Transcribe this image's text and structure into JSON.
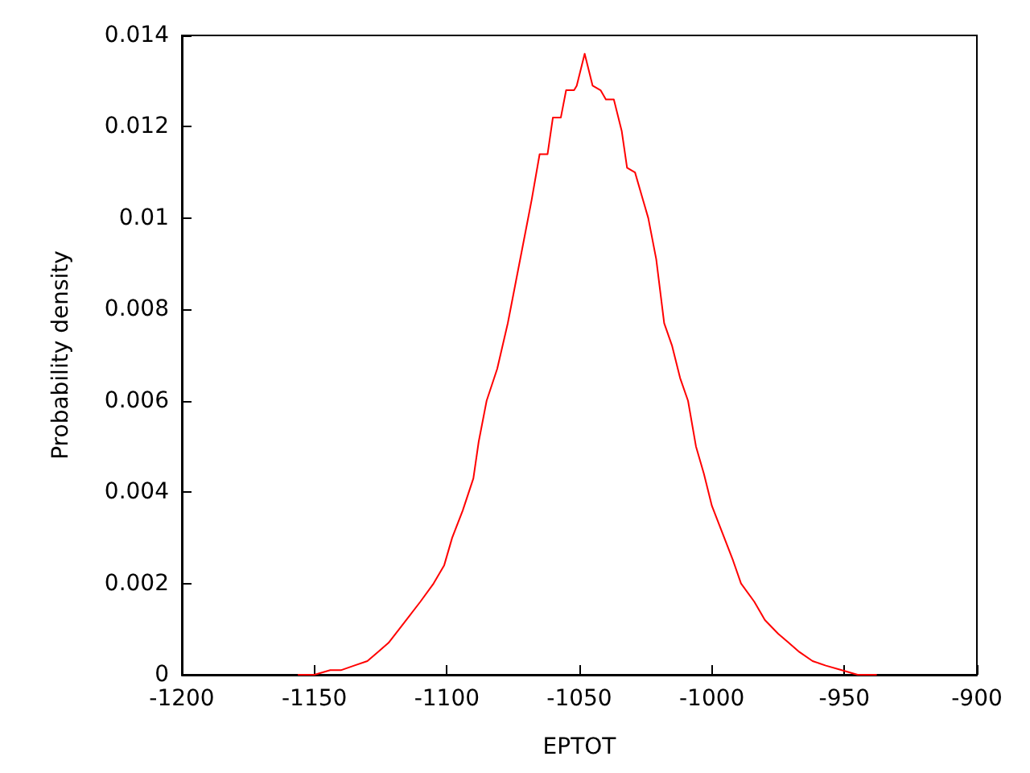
{
  "chart_data": {
    "type": "line",
    "xlabel": "EPTOT",
    "ylabel": "Probability density",
    "xlim": [
      -1200,
      -900
    ],
    "xticks": [
      -1200,
      -1150,
      -1100,
      -1050,
      -1000,
      -950,
      -900
    ],
    "ylim": [
      0,
      0.014
    ],
    "yticks": [
      0,
      0.002,
      0.004,
      0.006,
      0.008,
      0.01,
      0.012,
      0.014
    ],
    "grid": false,
    "marker": "none",
    "line_style": "solid",
    "series": [
      {
        "color": "#ff0000",
        "x": [
          -1156,
          -1150,
          -1144,
          -1140,
          -1135,
          -1130,
          -1126,
          -1122,
          -1118,
          -1114,
          -1110,
          -1105,
          -1101,
          -1098,
          -1094,
          -1090,
          -1088,
          -1085,
          -1081,
          -1077,
          -1074,
          -1071,
          -1068,
          -1065,
          -1062,
          -1060,
          -1057,
          -1055,
          -1052,
          -1051,
          -1048,
          -1045,
          -1042,
          -1040,
          -1037,
          -1034,
          -1032,
          -1029,
          -1026,
          -1024,
          -1021,
          -1018,
          -1015,
          -1012,
          -1009,
          -1006,
          -1003,
          -1000,
          -996,
          -992,
          -989,
          -984,
          -980,
          -975,
          -971,
          -967,
          -962,
          -957,
          -951,
          -945,
          -938
        ],
        "values": [
          0,
          0,
          0.0001,
          0.0001,
          0.0002,
          0.0003,
          0.0005,
          0.0007,
          0.001,
          0.0013,
          0.0016,
          0.002,
          0.0024,
          0.003,
          0.0036,
          0.0043,
          0.0051,
          0.006,
          0.0067,
          0.0077,
          0.0086,
          0.0095,
          0.0104,
          0.0114,
          0.0114,
          0.0122,
          0.0122,
          0.0128,
          0.0128,
          0.0129,
          0.0136,
          0.0129,
          0.0128,
          0.0126,
          0.0126,
          0.0119,
          0.0111,
          0.011,
          0.0104,
          0.01,
          0.0091,
          0.0077,
          0.0072,
          0.0065,
          0.006,
          0.005,
          0.0044,
          0.0037,
          0.0031,
          0.0025,
          0.002,
          0.0016,
          0.0012,
          0.0009,
          0.0007,
          0.0005,
          0.0003,
          0.0002,
          0.0001,
          0,
          0
        ]
      }
    ]
  }
}
